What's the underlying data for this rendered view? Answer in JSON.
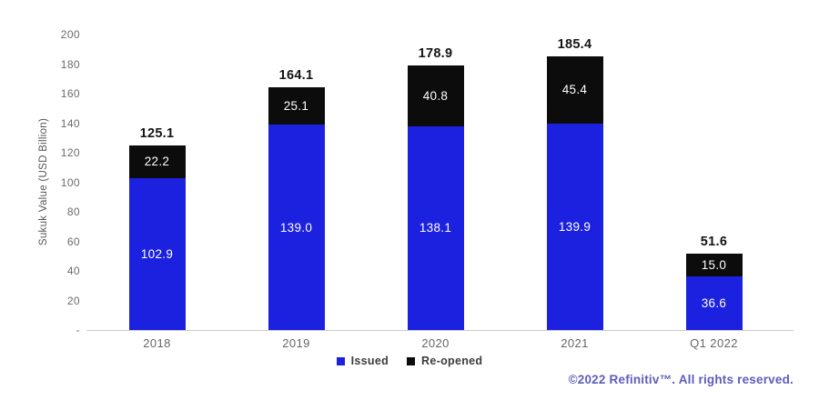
{
  "chart_data": {
    "type": "bar",
    "stacked": true,
    "title": "",
    "xlabel": "",
    "ylabel": "Sukuk Value (USD Billion)",
    "categories": [
      "2018",
      "2019",
      "2020",
      "2021",
      "Q1 2022"
    ],
    "series": [
      {
        "name": "Issued",
        "color": "#1c21e0",
        "values": [
          102.9,
          139.0,
          138.1,
          139.9,
          36.6
        ]
      },
      {
        "name": "Re-opened",
        "color": "#0c0c0c",
        "values": [
          22.2,
          25.1,
          40.8,
          45.4,
          15.0
        ]
      }
    ],
    "totals": [
      125.1,
      164.1,
      178.9,
      185.4,
      51.6
    ],
    "ylim": [
      0,
      200
    ],
    "yticks": [
      0,
      20,
      40,
      60,
      80,
      100,
      120,
      140,
      160,
      180,
      200
    ],
    "ytick_labels": [
      "-",
      "20",
      "40",
      "60",
      "80",
      "100",
      "120",
      "140",
      "160",
      "180",
      "200"
    ],
    "grid": false,
    "legend_position": "bottom-center"
  },
  "legend": {
    "items": [
      {
        "label": "Issued",
        "color": "#1c21e0"
      },
      {
        "label": "Re-opened",
        "color": "#0c0c0c"
      }
    ]
  },
  "footer": {
    "copyright": "©2022 Refinitiv™. All rights reserved."
  },
  "colors": {
    "issued": "#1c21e0",
    "reopened": "#0c0c0c",
    "axis_line": "#cccccc",
    "tick_text": "#6b6b6b",
    "total_text": "#141414",
    "footer_text": "#5d5dbb",
    "background": "#ffffff"
  }
}
